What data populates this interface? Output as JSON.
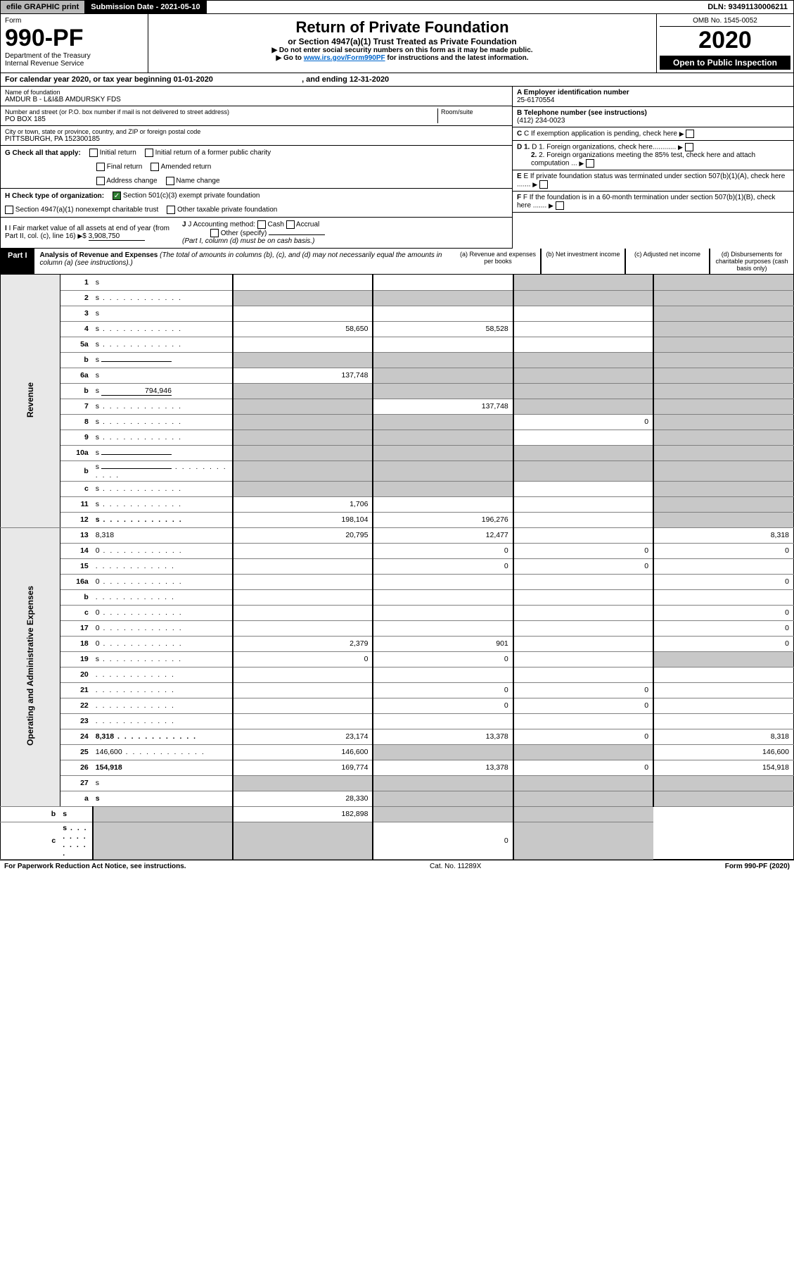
{
  "topbar": {
    "efile": "efile GRAPHIC print",
    "subdate": "Submission Date - 2021-05-10",
    "dln": "DLN: 93491130006211"
  },
  "header": {
    "form": "Form",
    "formno": "990-PF",
    "dept": "Department of the Treasury",
    "irs": "Internal Revenue Service",
    "title": "Return of Private Foundation",
    "subtitle": "or Section 4947(a)(1) Trust Treated as Private Foundation",
    "instr1": "▶ Do not enter social security numbers on this form as it may be made public.",
    "instr2_pre": "▶ Go to ",
    "instr2_link": "www.irs.gov/Form990PF",
    "instr2_post": " for instructions and the latest information.",
    "omb": "OMB No. 1545-0052",
    "year": "2020",
    "open": "Open to Public Inspection"
  },
  "calyear": {
    "pre": "For calendar year 2020, or tax year beginning ",
    "begin": "01-01-2020",
    "mid": " , and ending ",
    "end": "12-31-2020"
  },
  "info": {
    "name_label": "Name of foundation",
    "name": "AMDUR B - L&I&B AMDURSKY FDS",
    "addr_label": "Number and street (or P.O. box number if mail is not delivered to street address)",
    "addr": "PO BOX 185",
    "room_label": "Room/suite",
    "city_label": "City or town, state or province, country, and ZIP or foreign postal code",
    "city": "PITTSBURGH, PA  152300185",
    "ein_label": "A Employer identification number",
    "ein": "25-6170554",
    "tel_label": "B Telephone number (see instructions)",
    "tel": "(412) 234-0023",
    "c": "C If exemption application is pending, check here",
    "d1": "D 1. Foreign organizations, check here............",
    "d2": "2. Foreign organizations meeting the 85% test, check here and attach computation ...",
    "e": "E If private foundation status was terminated under section 507(b)(1)(A), check here .......",
    "f": "F If the foundation is in a 60-month termination under section 507(b)(1)(B), check here .......",
    "g_label": "G Check all that apply:",
    "g_initial": "Initial return",
    "g_initial_former": "Initial return of a former public charity",
    "g_final": "Final return",
    "g_amended": "Amended return",
    "g_addr": "Address change",
    "g_name": "Name change",
    "h_label": "H Check type of organization:",
    "h_501c3": "Section 501(c)(3) exempt private foundation",
    "h_4947": "Section 4947(a)(1) nonexempt charitable trust",
    "h_other": "Other taxable private foundation",
    "i_label": "I Fair market value of all assets at end of year (from Part II, col. (c), line 16)",
    "i_val": "3,908,750",
    "j_label": "J Accounting method:",
    "j_cash": "Cash",
    "j_accrual": "Accrual",
    "j_other": "Other (specify)",
    "j_note": "(Part I, column (d) must be on cash basis.)"
  },
  "part1": {
    "tag": "Part I",
    "title": "Analysis of Revenue and Expenses",
    "note": "(The total of amounts in columns (b), (c), and (d) may not necessarily equal the amounts in column (a) (see instructions).)",
    "cols": {
      "a": "(a) Revenue and expenses per books",
      "b": "(b) Net investment income",
      "c": "(c) Adjusted net income",
      "d": "(d) Disbursements for charitable purposes (cash basis only)"
    }
  },
  "sections": {
    "revenue": "Revenue",
    "opex": "Operating and Administrative Expenses"
  },
  "rows": [
    {
      "n": "1",
      "d": "s",
      "a": "",
      "b": "",
      "c": "s"
    },
    {
      "n": "2",
      "d": "s",
      "a": "s",
      "b": "s",
      "c": "s",
      "dots": true
    },
    {
      "n": "3",
      "d": "s",
      "a": "",
      "b": "",
      "c": ""
    },
    {
      "n": "4",
      "d": "s",
      "a": "58,650",
      "b": "58,528",
      "c": "",
      "dots": true
    },
    {
      "n": "5a",
      "d": "s",
      "a": "",
      "b": "",
      "c": "",
      "dots": true
    },
    {
      "n": "b",
      "d": "s",
      "a": "s",
      "b": "s",
      "c": "s",
      "inline": true
    },
    {
      "n": "6a",
      "d": "s",
      "a": "137,748",
      "b": "s",
      "c": "s"
    },
    {
      "n": "b",
      "d": "s",
      "a": "s",
      "b": "s",
      "c": "s",
      "inline": true,
      "inlineval": "794,946"
    },
    {
      "n": "7",
      "d": "s",
      "a": "s",
      "b": "137,748",
      "c": "s",
      "dots": true
    },
    {
      "n": "8",
      "d": "s",
      "a": "s",
      "b": "s",
      "c": "0",
      "dots": true
    },
    {
      "n": "9",
      "d": "s",
      "a": "s",
      "b": "s",
      "c": "",
      "dots": true
    },
    {
      "n": "10a",
      "d": "s",
      "a": "s",
      "b": "s",
      "c": "s",
      "inline": true
    },
    {
      "n": "b",
      "d": "s",
      "a": "s",
      "b": "s",
      "c": "s",
      "inline": true,
      "dots": true
    },
    {
      "n": "c",
      "d": "s",
      "a": "s",
      "b": "s",
      "c": "",
      "dots": true
    },
    {
      "n": "11",
      "d": "s",
      "a": "1,706",
      "b": "",
      "c": "",
      "dots": true
    },
    {
      "n": "12",
      "d": "s",
      "a": "198,104",
      "b": "196,276",
      "c": "",
      "bold": true,
      "dots": true
    },
    {
      "n": "13",
      "d": "8,318",
      "a": "20,795",
      "b": "12,477",
      "c": ""
    },
    {
      "n": "14",
      "d": "0",
      "a": "",
      "b": "0",
      "c": "0",
      "dots": true
    },
    {
      "n": "15",
      "d": "",
      "a": "",
      "b": "0",
      "c": "0",
      "dots": true
    },
    {
      "n": "16a",
      "d": "0",
      "a": "",
      "b": "",
      "c": "",
      "dots": true
    },
    {
      "n": "b",
      "d": "",
      "a": "",
      "b": "",
      "c": "",
      "dots": true
    },
    {
      "n": "c",
      "d": "0",
      "a": "",
      "b": "",
      "c": "",
      "dots": true
    },
    {
      "n": "17",
      "d": "0",
      "a": "",
      "b": "",
      "c": "",
      "dots": true
    },
    {
      "n": "18",
      "d": "0",
      "a": "2,379",
      "b": "901",
      "c": "",
      "dots": true
    },
    {
      "n": "19",
      "d": "s",
      "a": "0",
      "b": "0",
      "c": "",
      "dots": true
    },
    {
      "n": "20",
      "d": "",
      "a": "",
      "b": "",
      "c": "",
      "dots": true
    },
    {
      "n": "21",
      "d": "",
      "a": "",
      "b": "0",
      "c": "0",
      "dots": true
    },
    {
      "n": "22",
      "d": "",
      "a": "",
      "b": "0",
      "c": "0",
      "dots": true
    },
    {
      "n": "23",
      "d": "",
      "a": "",
      "b": "",
      "c": "",
      "dots": true
    },
    {
      "n": "24",
      "d": "8,318",
      "a": "23,174",
      "b": "13,378",
      "c": "0",
      "bold": true,
      "dots": true
    },
    {
      "n": "25",
      "d": "146,600",
      "a": "146,600",
      "b": "s",
      "c": "s",
      "dots": true
    },
    {
      "n": "26",
      "d": "154,918",
      "a": "169,774",
      "b": "13,378",
      "c": "0",
      "bold": true
    },
    {
      "n": "27",
      "d": "s",
      "a": "s",
      "b": "s",
      "c": "s"
    },
    {
      "n": "a",
      "d": "s",
      "a": "28,330",
      "b": "s",
      "c": "s",
      "bold": true
    },
    {
      "n": "b",
      "d": "s",
      "a": "s",
      "b": "182,898",
      "c": "s",
      "bold": true
    },
    {
      "n": "c",
      "d": "s",
      "a": "s",
      "b": "s",
      "c": "0",
      "bold": true,
      "dots": true
    }
  ],
  "footer": {
    "left": "For Paperwork Reduction Act Notice, see instructions.",
    "mid": "Cat. No. 11289X",
    "right": "Form 990-PF (2020)"
  }
}
